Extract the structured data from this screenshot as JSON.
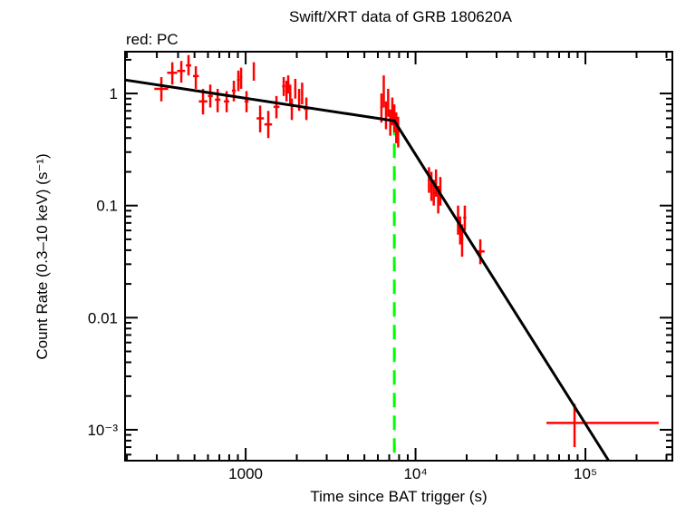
{
  "chart_data": {
    "type": "scatter",
    "title": "Swift/XRT data of GRB 180620A",
    "subtitle": "red: PC",
    "xlabel": "Time since BAT trigger (s)",
    "ylabel": "Count Rate (0.3–10 keV) (s⁻¹)",
    "xscale": "log",
    "yscale": "log",
    "xlim": [
      195,
      325000
    ],
    "ylim": [
      0.00053,
      2.36
    ],
    "grid": false,
    "x_ticks": [
      {
        "value": 1000,
        "label": "1000"
      },
      {
        "value": 10000,
        "label": "10⁴"
      },
      {
        "value": 100000,
        "label": "10⁵"
      }
    ],
    "y_ticks": [
      {
        "value": 1,
        "label": "1"
      },
      {
        "value": 0.1,
        "label": "0.1"
      },
      {
        "value": 0.01,
        "label": "0.01"
      },
      {
        "value": 0.001,
        "label": "10⁻³"
      }
    ],
    "series": [
      {
        "name": "PC",
        "color": "#ff0000",
        "points_format": [
          "x",
          "x_low",
          "x_high",
          "y",
          "y_low",
          "y_high"
        ],
        "points": [
          [
            319,
            290,
            350,
            1.1,
            0.85,
            1.4
          ],
          [
            370,
            345,
            395,
            1.53,
            1.2,
            1.9
          ],
          [
            418,
            395,
            440,
            1.59,
            1.25,
            1.95
          ],
          [
            461,
            445,
            478,
            1.78,
            1.45,
            2.2
          ],
          [
            509,
            490,
            530,
            1.43,
            1.1,
            1.75
          ],
          [
            561,
            530,
            595,
            0.85,
            0.65,
            1.1
          ],
          [
            619,
            600,
            640,
            0.95,
            0.75,
            1.2
          ],
          [
            684,
            660,
            710,
            0.88,
            0.68,
            1.1
          ],
          [
            773,
            745,
            800,
            0.85,
            0.68,
            1.05
          ],
          [
            852,
            830,
            875,
            1.06,
            0.85,
            1.3
          ],
          [
            906,
            890,
            925,
            1.32,
            1.05,
            1.6
          ],
          [
            940,
            925,
            955,
            1.4,
            1.1,
            1.7
          ],
          [
            1012,
            985,
            1040,
            0.85,
            0.68,
            1.05
          ],
          [
            1117,
            1105,
            1130,
            1.6,
            1.3,
            1.9
          ],
          [
            1217,
            1160,
            1280,
            0.6,
            0.45,
            0.78
          ],
          [
            1359,
            1290,
            1430,
            0.53,
            0.4,
            0.7
          ],
          [
            1518,
            1460,
            1580,
            0.76,
            0.6,
            0.95
          ],
          [
            1675,
            1640,
            1710,
            1.16,
            0.95,
            1.4
          ],
          [
            1740,
            1710,
            1770,
            1.05,
            0.85,
            1.3
          ],
          [
            1780,
            1750,
            1810,
            1.23,
            1.0,
            1.45
          ],
          [
            1830,
            1800,
            1860,
            0.98,
            0.8,
            1.2
          ],
          [
            1870,
            1840,
            1900,
            0.73,
            0.58,
            0.9
          ],
          [
            1960,
            1930,
            1990,
            1.1,
            0.9,
            1.35
          ],
          [
            2065,
            2030,
            2100,
            0.88,
            0.7,
            1.1
          ],
          [
            2150,
            2120,
            2180,
            1.0,
            0.8,
            1.25
          ],
          [
            2277,
            2200,
            2350,
            0.73,
            0.58,
            0.92
          ],
          [
            6300,
            6200,
            6400,
            0.75,
            0.55,
            1.0
          ],
          [
            6500,
            6420,
            6580,
            1.0,
            0.75,
            1.45
          ],
          [
            6700,
            6620,
            6780,
            0.65,
            0.48,
            0.85
          ],
          [
            6900,
            6820,
            6980,
            0.85,
            0.62,
            1.1
          ],
          [
            7100,
            7020,
            7180,
            0.55,
            0.42,
            0.72
          ],
          [
            7300,
            7220,
            7380,
            0.7,
            0.52,
            0.92
          ],
          [
            7500,
            7420,
            7580,
            0.6,
            0.45,
            0.8
          ],
          [
            7700,
            7620,
            7780,
            0.5,
            0.36,
            0.68
          ],
          [
            7900,
            7820,
            7980,
            0.45,
            0.33,
            0.62
          ],
          [
            12000,
            11800,
            12200,
            0.17,
            0.13,
            0.22
          ],
          [
            12400,
            12200,
            12600,
            0.15,
            0.11,
            0.2
          ],
          [
            12800,
            12600,
            13000,
            0.13,
            0.1,
            0.17
          ],
          [
            13200,
            13000,
            13400,
            0.16,
            0.12,
            0.21
          ],
          [
            13600,
            13400,
            13800,
            0.11,
            0.085,
            0.15
          ],
          [
            14000,
            13800,
            14200,
            0.14,
            0.1,
            0.18
          ],
          [
            17800,
            17500,
            18100,
            0.075,
            0.055,
            0.1
          ],
          [
            18300,
            18000,
            18600,
            0.06,
            0.045,
            0.08
          ],
          [
            18800,
            18500,
            19100,
            0.05,
            0.035,
            0.068
          ],
          [
            19500,
            19100,
            19900,
            0.078,
            0.06,
            0.1
          ],
          [
            24060,
            23000,
            25500,
            0.039,
            0.03,
            0.05
          ],
          [
            86300,
            59000,
            270000,
            0.00115,
            0.0007,
            0.0017
          ]
        ]
      }
    ],
    "model": {
      "type": "broken power law",
      "color": "#000000",
      "points": [
        [
          195,
          1.32
        ],
        [
          7500,
          0.57
        ],
        [
          137000,
          0.00053
        ]
      ]
    },
    "break_marker": {
      "x": 7500,
      "color": "#00ff00",
      "style": "dashed"
    }
  }
}
